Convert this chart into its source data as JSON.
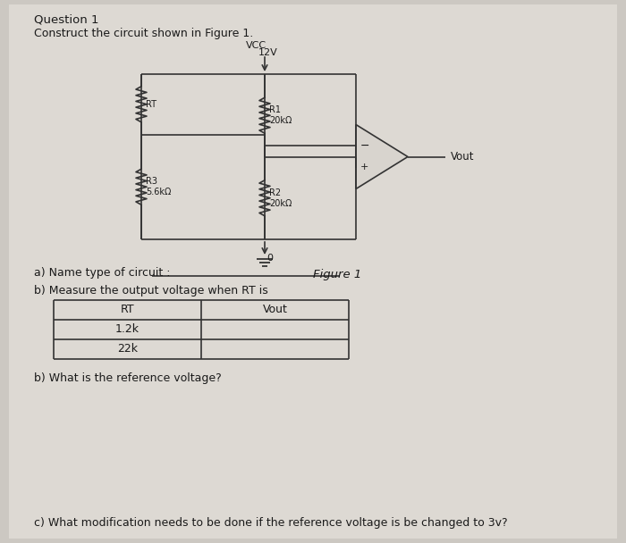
{
  "bg_color": "#ccc8c2",
  "title": "Question 1",
  "subtitle": "Construct the circuit shown in Figure 1.",
  "figure_label": "Figure 1",
  "question_a": "a) Name type of circuit : ",
  "question_b1": "b) Measure the output voltage when RT is",
  "question_b2": "b) What is the reference voltage?",
  "question_c": "c) What modification needs to be done if the reference voltage is be changed to 3v?",
  "table_headers": [
    "RT",
    "Vout"
  ],
  "table_rows": [
    "1.2k",
    "22k"
  ],
  "vcc_label": "VCC",
  "vcc_voltage": "12V",
  "r1_label": "R1\n20kΩ",
  "r2_label": "R2\n20kΩ",
  "r3_label": "R3\n5.6kΩ",
  "rt_label": "RT",
  "vout_label": "Vout",
  "gnd_label": "0",
  "text_color": "#1a1a1a",
  "line_color": "#333333",
  "box_fill": "#d8d4ce"
}
